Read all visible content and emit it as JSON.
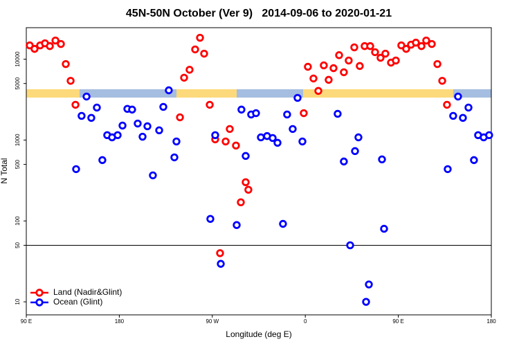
{
  "chart_data": {
    "type": "scatter",
    "title": "45N-50N October (Ver 9)   2014-09-06 to 2020-01-21",
    "x_label": "Longitude (deg E)",
    "y_label": "N Total",
    "log_y": true,
    "hline": 50,
    "legend": "bottom-left",
    "xlim": [
      90,
      540
    ],
    "ylim": [
      6.9,
      24500
    ],
    "xticks": [
      {
        "value": 90,
        "label": "90 E"
      },
      180,
      {
        "value": 270,
        "label": "90 W"
      },
      {
        "value": 360,
        "label": "0"
      },
      {
        "value": 450,
        "label": "90 E"
      },
      {
        "value": 540,
        "label": "180"
      }
    ],
    "yticks": [
      10,
      50,
      100,
      500,
      1000,
      5000,
      10000
    ],
    "series": [
      {
        "name": "Land (Nadir&Glint)",
        "color": "#ff0000",
        "x": [
          93.3,
          98.0,
          103.4,
          108.1,
          112.8,
          118.2,
          123.5,
          128.2,
          132.9,
          137.6,
          238.7,
          242.7,
          248.0,
          253.4,
          258.1,
          262.1,
          267.5,
          272.8,
          277.5,
          282.9,
          286.9,
          292.9,
          297.6,
          302.3,
          304.9,
          358.5,
          362.5,
          367.9,
          372.6,
          377.9,
          382.6,
          387.3,
          392.7,
          397.3,
          402.0,
          407.4,
          412.7,
          417.4,
          422.8,
          427.5,
          432.8,
          437.5,
          442.9,
          447.6,
          452.9,
          457.6,
          462.3,
          467.0,
          472.4,
          477.0,
          482.4,
          487.8,
          492.5,
          497.1
        ],
        "values": [
          14800,
          13400,
          14800,
          15700,
          14500,
          17000,
          15400,
          8700,
          5400,
          2730,
          1910,
          5900,
          7400,
          13200,
          18400,
          11700,
          2730,
          1020,
          40,
          960,
          1370,
          855,
          170,
          301,
          243,
          2150,
          8050,
          5770,
          4050,
          8380,
          5550,
          7740,
          11200,
          6890,
          9620,
          14000,
          8230,
          14500,
          14500,
          12200,
          10400,
          11700,
          9060,
          9620,
          14800,
          13400,
          15100,
          16000,
          14500,
          17000,
          15400,
          8700,
          5400,
          2730
        ]
      },
      {
        "name": "Ocean (Glint)",
        "color": "#0000ff",
        "x": [
          138.2,
          143.5,
          148.3,
          152.9,
          158.3,
          163.6,
          168.3,
          173.0,
          178.4,
          183.1,
          187.8,
          192.4,
          197.8,
          202.5,
          207.2,
          212.5,
          218.6,
          222.6,
          227.9,
          233.3,
          235.3,
          268.1,
          272.8,
          278.2,
          293.6,
          298.2,
          302.3,
          307.6,
          312.3,
          317.0,
          323.0,
          328.4,
          333.1,
          338.4,
          342.4,
          347.8,
          352.5,
          357.2,
          391.3,
          397.3,
          403.4,
          408.1,
          411.4,
          418.8,
          421.5,
          434.2,
          436.2,
          497.8,
          503.1,
          507.8,
          512.5,
          517.9,
          523.2,
          527.2,
          532.6,
          537.9
        ],
        "values": [
          437,
          1990,
          3450,
          1880,
          2520,
          565,
          1150,
          1080,
          1150,
          1510,
          2430,
          2380,
          1600,
          1100,
          1480,
          366,
          1320,
          2570,
          4120,
          611,
          960,
          106,
          1150,
          29.5,
          89,
          2380,
          636,
          2070,
          2150,
          1080,
          1120,
          1060,
          925,
          92,
          2070,
          1370,
          3320,
          960,
          2110,
          543,
          50,
          730,
          1080,
          10,
          16.4,
          577,
          80,
          437,
          1990,
          3450,
          1880,
          2520,
          565,
          1150,
          1080,
          1150
        ]
      }
    ]
  }
}
